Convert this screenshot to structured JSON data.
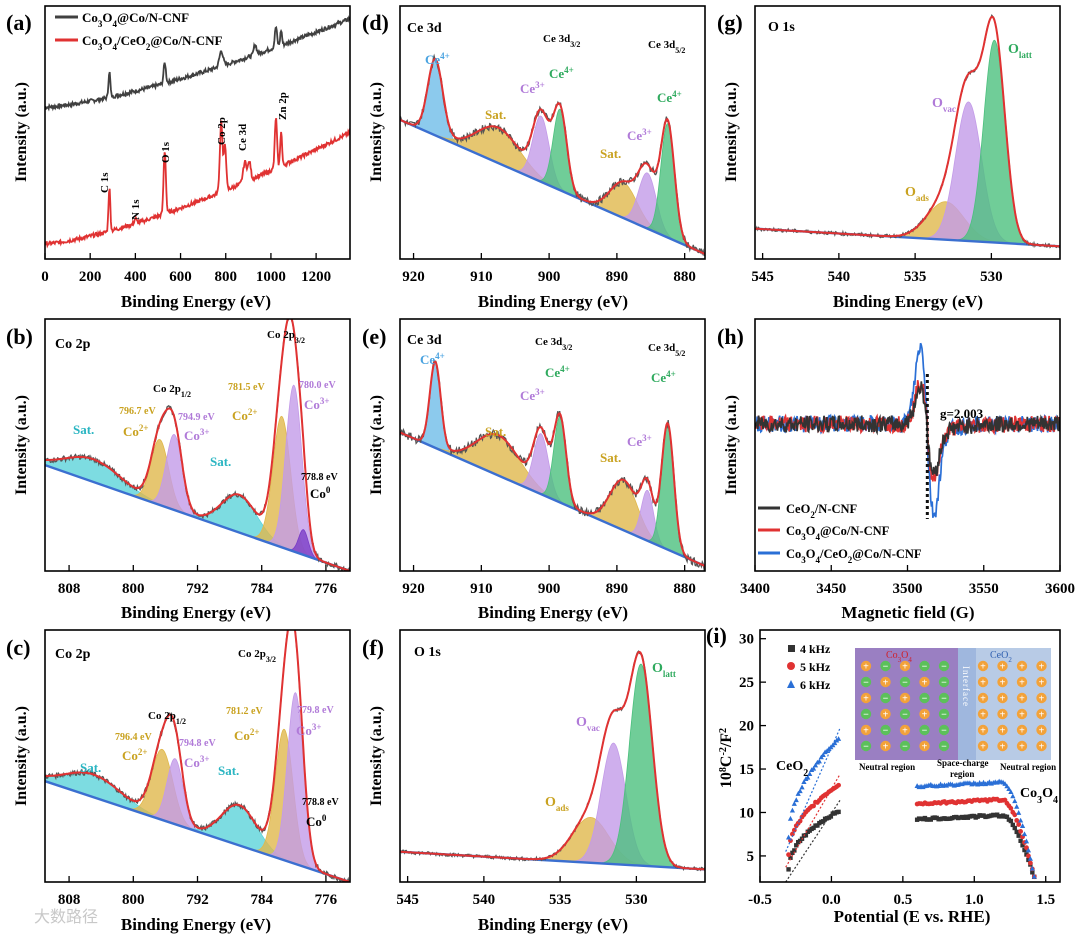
{
  "chart_data": [
    {
      "panel": "(a)",
      "type": "line",
      "title": "",
      "xlabel": "Binding Energy (eV)",
      "ylabel": "Intensity (a.u.)",
      "xlim": [
        0,
        1350
      ],
      "ylim": [
        0,
        100
      ],
      "x_reversed": false,
      "ticks": [
        0,
        200,
        400,
        600,
        800,
        1000,
        1200
      ],
      "legend": [
        "Co3O4@Co/N-CNF",
        "Co3O4/CeO2@Co/N-CNF"
      ],
      "legend_position": "top-left",
      "series": [
        {
          "name": "Co3O4@Co/N-CNF",
          "color": "#404040",
          "base_start": 60,
          "base_end": 95,
          "peaks": [
            [
              285,
              10,
              4
            ],
            [
              530,
              8,
              5
            ],
            [
              780,
              6,
              8
            ],
            [
              930,
              4,
              6
            ],
            [
              1022,
              8,
              5
            ],
            [
              1045,
              6,
              4
            ]
          ]
        },
        {
          "name": "Co3O4/CeO2@Co/N-CNF",
          "color": "#e03232",
          "base_start": 6,
          "base_end": 50,
          "peaks": [
            [
              285,
              17,
              4
            ],
            [
              400,
              2,
              5
            ],
            [
              530,
              25,
              5
            ],
            [
              780,
              28,
              6
            ],
            [
              797,
              18,
              5
            ],
            [
              885,
              8,
              8
            ],
            [
              905,
              7,
              6
            ],
            [
              1022,
              20,
              5
            ],
            [
              1045,
              14,
              4
            ]
          ]
        }
      ],
      "annotations": [
        {
          "text": "C 1s",
          "x": 285
        },
        {
          "text": "N 1s",
          "x": 400
        },
        {
          "text": "O 1s",
          "x": 530
        },
        {
          "text": "Co 2p",
          "x": 780
        },
        {
          "text": "Ce 3d",
          "x": 890
        },
        {
          "text": "Zn 2p",
          "x": 1022
        }
      ]
    },
    {
      "panel": "(b)",
      "type": "line",
      "title": "Co 2p",
      "xlabel": "Binding Energy (eV)",
      "ylabel": "Intensity (a.u.)",
      "xlim": [
        811,
        773
      ],
      "ylim": [
        0,
        100
      ],
      "x_reversed": true,
      "ticks": [
        808,
        800,
        792,
        784,
        776
      ],
      "baseline": [
        42,
        0
      ],
      "components": [
        {
          "label": "Sat.",
          "center": 805,
          "height": 9,
          "width": 3.5,
          "color": "#5dd3d9"
        },
        {
          "label": "Co2+ 796.7",
          "center": 796.7,
          "height": 26,
          "width": 1.1,
          "color": "#e0b84c"
        },
        {
          "label": "Co3+ 794.9",
          "center": 794.9,
          "height": 30,
          "width": 1.0,
          "color": "#c39be8"
        },
        {
          "label": "Sat.",
          "center": 786.8,
          "height": 15,
          "width": 2.2,
          "color": "#5dd3d9"
        },
        {
          "label": "Co2+ 781.5",
          "center": 781.5,
          "height": 52,
          "width": 1.1,
          "color": "#e0b84c"
        },
        {
          "label": "Co3+ 780.0",
          "center": 780.0,
          "height": 66,
          "width": 1.0,
          "color": "#c39be8"
        },
        {
          "label": "Co0 778.8",
          "center": 778.8,
          "height": 10,
          "width": 0.6,
          "color": "#7a3dc7"
        }
      ],
      "annotations": [
        {
          "text": "Co 2p3/2"
        },
        {
          "text": "Co 2p1/2"
        },
        {
          "text": "781.5 eV"
        },
        {
          "text": "780.0 eV"
        },
        {
          "text": "796.7 eV"
        },
        {
          "text": "794.9 eV"
        },
        {
          "text": "778.8 eV"
        }
      ]
    },
    {
      "panel": "(c)",
      "type": "line",
      "title": "Co 2p",
      "xlabel": "Binding Energy (eV)",
      "ylabel": "Intensity (a.u.)",
      "xlim": [
        811,
        773
      ],
      "ylim": [
        0,
        100
      ],
      "x_reversed": true,
      "ticks": [
        808,
        800,
        792,
        784,
        776
      ],
      "baseline": [
        40,
        0
      ],
      "components": [
        {
          "label": "Sat.",
          "center": 805,
          "height": 9,
          "width": 3.5,
          "color": "#5dd3d9"
        },
        {
          "label": "Co2+ 796.4",
          "center": 796.4,
          "height": 28,
          "width": 1.3,
          "color": "#e0b84c"
        },
        {
          "label": "Co3+ 794.8",
          "center": 794.8,
          "height": 26,
          "width": 1.0,
          "color": "#c39be8"
        },
        {
          "label": "Sat.",
          "center": 786.8,
          "height": 16,
          "width": 2.2,
          "color": "#5dd3d9"
        },
        {
          "label": "Co2+ 781.2",
          "center": 781.2,
          "height": 52,
          "width": 1.1,
          "color": "#e0b84c"
        },
        {
          "label": "Co3+ 779.8",
          "center": 779.8,
          "height": 68,
          "width": 1.0,
          "color": "#c39be8"
        }
      ],
      "annotations": [
        {
          "text": "Co 2p3/2"
        },
        {
          "text": "Co 2p1/2"
        },
        {
          "text": "781.2 eV"
        },
        {
          "text": "779.8 eV"
        },
        {
          "text": "796.4 eV"
        },
        {
          "text": "794.8 eV"
        },
        {
          "text": "778.8 eV"
        }
      ]
    },
    {
      "panel": "(d)",
      "type": "line",
      "title": "Ce 3d",
      "xlabel": "Binding Energy (eV)",
      "ylabel": "Intensity (a.u.)",
      "xlim": [
        922,
        877
      ],
      "ylim": [
        0,
        100
      ],
      "x_reversed": true,
      "ticks": [
        920,
        910,
        900,
        890,
        880
      ],
      "baseline": [
        55,
        2
      ],
      "components": [
        {
          "label": "Ce4+",
          "center": 916.8,
          "height": 30,
          "width": 1.1,
          "color": "#6fbde8"
        },
        {
          "label": "Sat.",
          "center": 907.5,
          "height": 14,
          "width": 3.2,
          "color": "#e0b84c"
        },
        {
          "label": "Ce3+",
          "center": 901.2,
          "height": 26,
          "width": 1.2,
          "color": "#c39be8"
        },
        {
          "label": "Ce4+",
          "center": 898.4,
          "height": 32,
          "width": 1.0,
          "color": "#4cc07e"
        },
        {
          "label": "Sat.",
          "center": 889.0,
          "height": 14,
          "width": 2.0,
          "color": "#e0b84c"
        },
        {
          "label": "Ce3+",
          "center": 885.5,
          "height": 22,
          "width": 1.3,
          "color": "#c39be8"
        },
        {
          "label": "Ce4+",
          "center": 882.5,
          "height": 45,
          "width": 1.0,
          "color": "#4cc07e"
        }
      ],
      "annotations": [
        {
          "text": "Ce 3d3/2"
        },
        {
          "text": "Ce 3d5/2"
        }
      ]
    },
    {
      "panel": "(e)",
      "type": "line",
      "title": "Ce 3d",
      "xlabel": "Binding Energy (eV)",
      "ylabel": "Intensity (a.u.)",
      "xlim": [
        922,
        877
      ],
      "ylim": [
        0,
        100
      ],
      "x_reversed": true,
      "ticks": [
        920,
        910,
        900,
        890,
        880
      ],
      "baseline": [
        55,
        2
      ],
      "components": [
        {
          "label": "Ce4+",
          "center": 916.8,
          "height": 34,
          "width": 0.8,
          "color": "#6fbde8"
        },
        {
          "label": "Sat.",
          "center": 907.5,
          "height": 16,
          "width": 3.2,
          "color": "#e0b84c"
        },
        {
          "label": "Ce3+",
          "center": 901.2,
          "height": 24,
          "width": 1.1,
          "color": "#c39be8"
        },
        {
          "label": "Ce4+",
          "center": 898.4,
          "height": 34,
          "width": 0.9,
          "color": "#4cc07e"
        },
        {
          "label": "Sat.",
          "center": 889.0,
          "height": 20,
          "width": 2.0,
          "color": "#e0b84c"
        },
        {
          "label": "Ce3+",
          "center": 885.5,
          "height": 20,
          "width": 0.9,
          "color": "#c39be8"
        },
        {
          "label": "Ce4+",
          "center": 882.5,
          "height": 50,
          "width": 0.9,
          "color": "#4cc07e"
        }
      ],
      "annotations": [
        {
          "text": "Ce 3d3/2"
        },
        {
          "text": "Ce 3d5/2"
        }
      ]
    },
    {
      "panel": "(f)",
      "type": "line",
      "title": "O 1s",
      "xlabel": "Binding Energy (eV)",
      "ylabel": "Intensity (a.u.)",
      "xlim": [
        545.5,
        525.5
      ],
      "ylim": [
        0,
        100
      ],
      "x_reversed": true,
      "ticks": [
        545,
        540,
        535,
        530
      ],
      "baseline": [
        12,
        5
      ],
      "components": [
        {
          "label": "Oads",
          "center": 533.0,
          "height": 18,
          "width": 1.2,
          "color": "#e0b84c"
        },
        {
          "label": "Ovac",
          "center": 531.5,
          "height": 48,
          "width": 0.8,
          "color": "#c39be8"
        },
        {
          "label": "Olatt",
          "center": 529.7,
          "height": 80,
          "width": 0.75,
          "color": "#4cc07e"
        }
      ]
    },
    {
      "panel": "(g)",
      "type": "line",
      "title": "O 1s",
      "xlabel": "Binding Energy (eV)",
      "ylabel": "Intensity (a.u.)",
      "xlim": [
        545.5,
        525.5
      ],
      "ylim": [
        0,
        100
      ],
      "x_reversed": true,
      "ticks": [
        545,
        540,
        535,
        530
      ],
      "baseline": [
        12,
        5
      ],
      "components": [
        {
          "label": "Oads",
          "center": 533.0,
          "height": 15,
          "width": 1.2,
          "color": "#e0b84c"
        },
        {
          "label": "Ovac",
          "center": 531.5,
          "height": 55,
          "width": 0.85,
          "color": "#c39be8"
        },
        {
          "label": "Olatt",
          "center": 529.8,
          "height": 80,
          "width": 0.7,
          "color": "#4cc07e"
        }
      ]
    },
    {
      "panel": "(h)",
      "type": "line",
      "title": "",
      "xlabel": "Magnetic field (G)",
      "ylabel": "Intensity (a.u.)",
      "xlim": [
        3400,
        3600
      ],
      "ylim": [
        -60,
        60
      ],
      "x_reversed": false,
      "ticks": [
        3400,
        3450,
        3500,
        3550,
        3600
      ],
      "g_value_label": "g=2.003",
      "g_field": 3513,
      "legend_position": "bottom-left",
      "series": [
        {
          "name": "CeO2/N-CNF",
          "color": "#333333",
          "amplitude": 18
        },
        {
          "name": "Co3O4@Co/N-CNF",
          "color": "#e03232",
          "amplitude": 20
        },
        {
          "name": "Co3O4/CeO2@Co/N-CNF",
          "color": "#2a6fd6",
          "amplitude": 38
        }
      ]
    },
    {
      "panel": "(i)",
      "type": "scatter",
      "title": "",
      "xlabel": "Potential (E vs. RHE)",
      "ylabel": "10^8 C^-2/F^2",
      "xlim": [
        -0.5,
        1.6
      ],
      "ylim": [
        2,
        31
      ],
      "x_reversed": false,
      "xticks": [
        -0.5,
        0.0,
        0.5,
        1.0,
        1.5
      ],
      "yticks": [
        5,
        10,
        15,
        20,
        25,
        30
      ],
      "legend_position": "top-left",
      "series": [
        {
          "name": "4 kHz",
          "color": "#333333",
          "marker": "square",
          "ceo2_start": 3.5,
          "ceo2_end": 10.2,
          "co3o4_plateau": 9.2
        },
        {
          "name": "5 kHz",
          "color": "#e03232",
          "marker": "circle",
          "ceo2_start": 5.2,
          "ceo2_end": 13.2,
          "co3o4_plateau": 11.0
        },
        {
          "name": "6 kHz",
          "color": "#2a6fd6",
          "marker": "triangle",
          "ceo2_start": 7.0,
          "ceo2_end": 18.5,
          "co3o4_plateau": 13.0
        }
      ],
      "annotations": [
        {
          "text": "CeO2"
        },
        {
          "text": "Co3O4"
        }
      ],
      "inset_labels": [
        "Co3O4",
        "CeO2",
        "Interface",
        "Neutral region",
        "Space-charge region",
        "Neutral region"
      ]
    }
  ],
  "watermark": "大数路径"
}
